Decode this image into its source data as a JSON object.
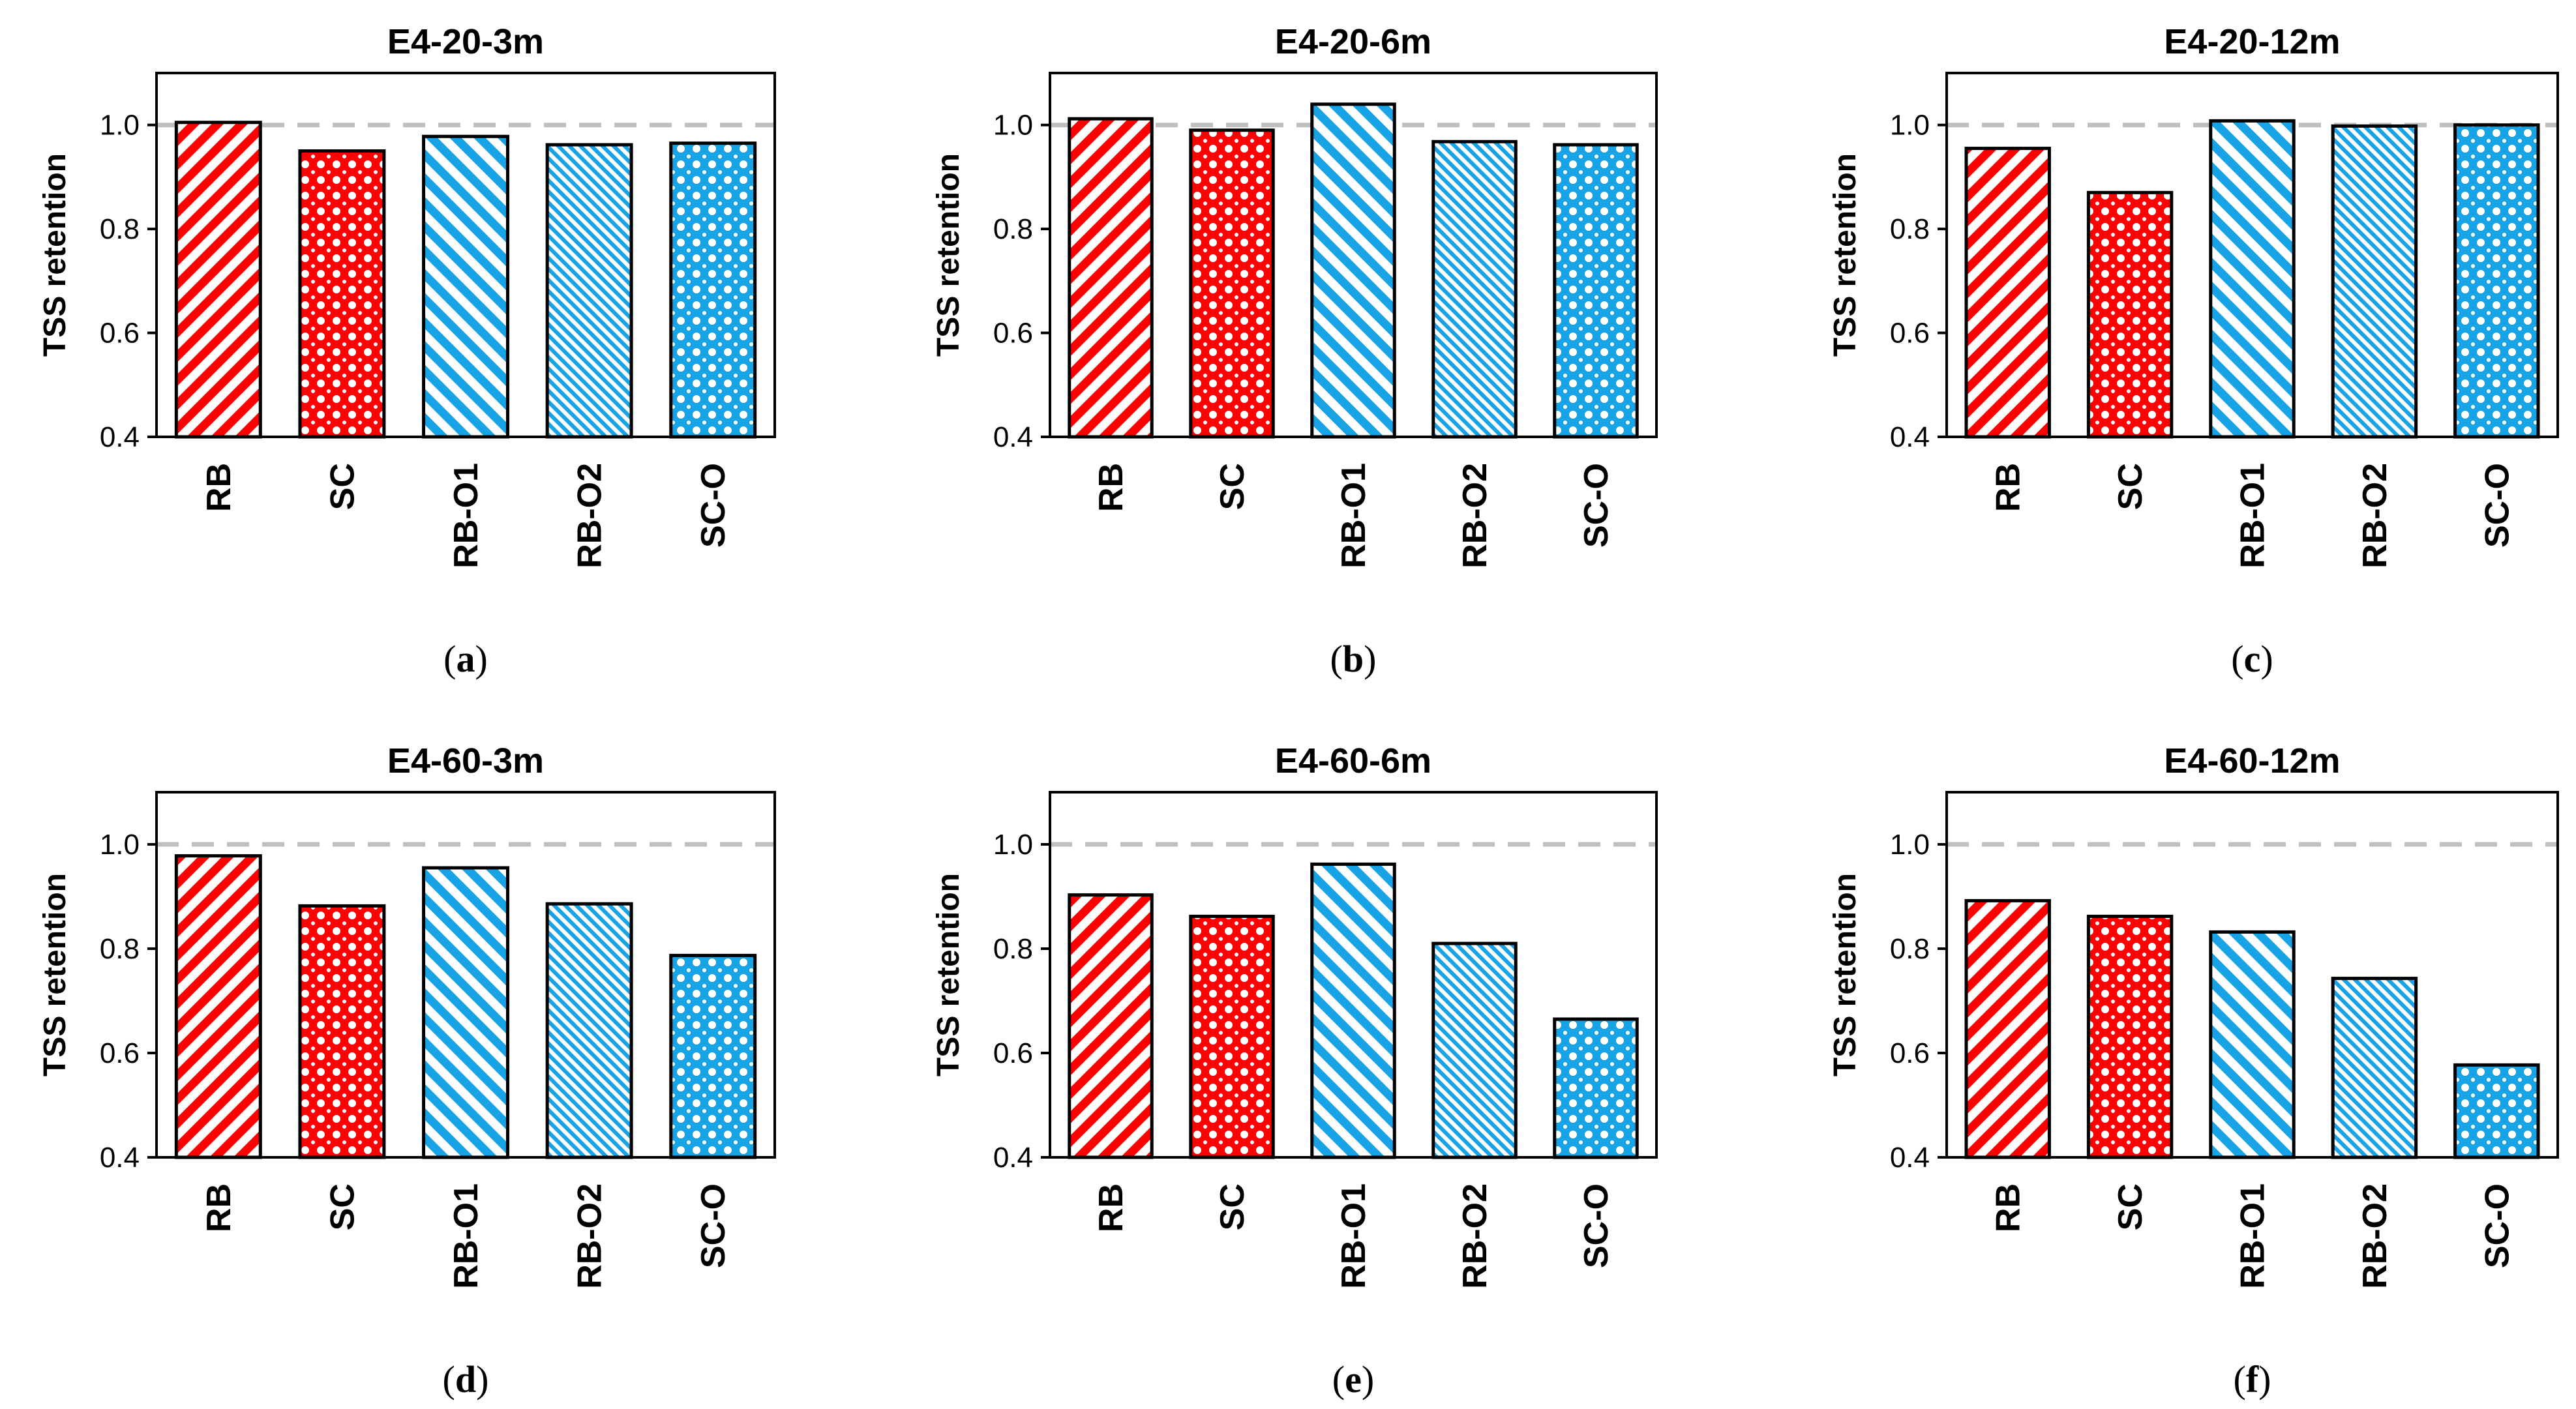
{
  "chart_data": [
    {
      "type": "bar",
      "panel_label": "a",
      "title": "E4-20-3m",
      "ylabel": "TSS retention",
      "xlabel": "",
      "categories": [
        "RB",
        "SC",
        "RB-O1",
        "RB-O2",
        "SC-O"
      ],
      "values": [
        1.005,
        0.95,
        0.978,
        0.962,
        0.965
      ],
      "ylim": [
        0.4,
        1.1
      ],
      "yticks": [
        "0.4",
        "0.6",
        "0.8",
        "1.0"
      ],
      "reference_line": 1.0
    },
    {
      "type": "bar",
      "panel_label": "b",
      "title": "E4-20-6m",
      "ylabel": "TSS retention",
      "xlabel": "",
      "categories": [
        "RB",
        "SC",
        "RB-O1",
        "RB-O2",
        "SC-O"
      ],
      "values": [
        1.012,
        0.99,
        1.04,
        0.968,
        0.962
      ],
      "ylim": [
        0.4,
        1.1
      ],
      "yticks": [
        "0.4",
        "0.6",
        "0.8",
        "1.0"
      ],
      "reference_line": 1.0
    },
    {
      "type": "bar",
      "panel_label": "c",
      "title": "E4-20-12m",
      "ylabel": "TSS retention",
      "xlabel": "",
      "categories": [
        "RB",
        "SC",
        "RB-O1",
        "RB-O2",
        "SC-O"
      ],
      "values": [
        0.955,
        0.87,
        1.008,
        0.998,
        1.0
      ],
      "ylim": [
        0.4,
        1.1
      ],
      "yticks": [
        "0.4",
        "0.6",
        "0.8",
        "1.0"
      ],
      "reference_line": 1.0
    },
    {
      "type": "bar",
      "panel_label": "d",
      "title": "E4-60-3m",
      "ylabel": "TSS retention",
      "xlabel": "",
      "categories": [
        "RB",
        "SC",
        "RB-O1",
        "RB-O2",
        "SC-O"
      ],
      "values": [
        0.978,
        0.882,
        0.955,
        0.886,
        0.787
      ],
      "ylim": [
        0.4,
        1.1
      ],
      "yticks": [
        "0.4",
        "0.6",
        "0.8",
        "1.0"
      ],
      "reference_line": 1.0
    },
    {
      "type": "bar",
      "panel_label": "e",
      "title": "E4-60-6m",
      "ylabel": "TSS retention",
      "xlabel": "",
      "categories": [
        "RB",
        "SC",
        "RB-O1",
        "RB-O2",
        "SC-O"
      ],
      "values": [
        0.903,
        0.862,
        0.962,
        0.81,
        0.665
      ],
      "ylim": [
        0.4,
        1.1
      ],
      "yticks": [
        "0.4",
        "0.6",
        "0.8",
        "1.0"
      ],
      "reference_line": 1.0
    },
    {
      "type": "bar",
      "panel_label": "f",
      "title": "E4-60-12m",
      "ylabel": "TSS retention",
      "xlabel": "",
      "categories": [
        "RB",
        "SC",
        "RB-O1",
        "RB-O2",
        "SC-O"
      ],
      "values": [
        0.892,
        0.862,
        0.832,
        0.743,
        0.577
      ],
      "ylim": [
        0.4,
        1.1
      ],
      "yticks": [
        "0.4",
        "0.6",
        "0.8",
        "1.0"
      ],
      "reference_line": 1.0
    }
  ],
  "style": {
    "red": "#ff0000",
    "blue": "#17a3e6",
    "reference_line_color": "#bfbfbf",
    "bar_patterns": [
      "diagonal-stripes-wide",
      "dotted-grid",
      "diagonal-stripes-wide",
      "diagonal-stripes-fine",
      "dotted-grid"
    ],
    "bar_colors": [
      "red",
      "red",
      "blue",
      "blue",
      "blue"
    ]
  }
}
